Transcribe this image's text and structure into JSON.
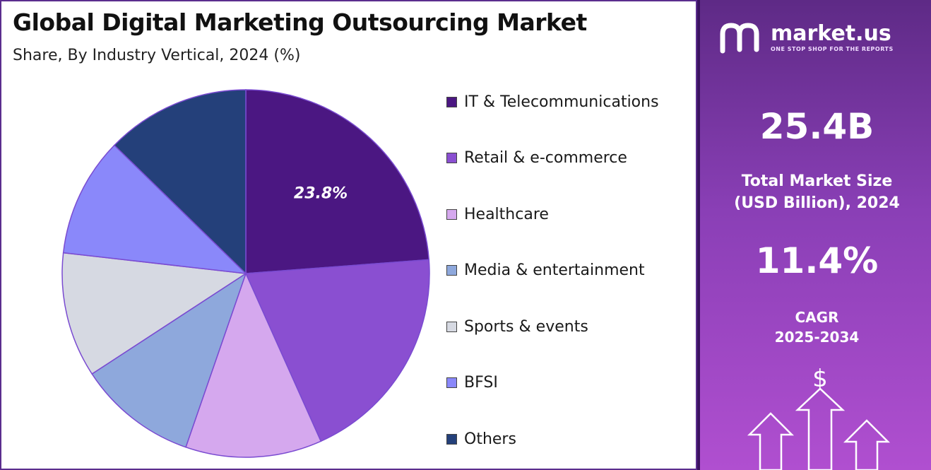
{
  "chart_data": {
    "type": "pie",
    "title": "Global Digital Marketing Outsourcing Market",
    "subtitle": "Share, By Industry Vertical, 2024 (%)",
    "slices": [
      {
        "label": "IT & Telecommunications",
        "value": 23.8,
        "color": "#4b1782",
        "data_label": "23.8%"
      },
      {
        "label": "Retail & e-commerce",
        "value": 19.5,
        "color": "#8a4fd1"
      },
      {
        "label": "Healthcare",
        "value": 12.0,
        "color": "#d5a8ee"
      },
      {
        "label": "Media & entertainment",
        "value": 10.5,
        "color": "#8ea8dc"
      },
      {
        "label": "Sports & events",
        "value": 11.0,
        "color": "#d6d9e2"
      },
      {
        "label": "BFSI",
        "value": 10.5,
        "color": "#8a88fa"
      },
      {
        "label": "Others",
        "value": 12.7,
        "color": "#24407a"
      }
    ],
    "legend_position": "right"
  },
  "brand": {
    "name": "market.us",
    "tagline": "ONE STOP SHOP FOR THE REPORTS"
  },
  "stats": {
    "market_size_value": "25.4B",
    "market_size_label_line1": "Total Market Size",
    "market_size_label_line2": "(USD Billion), 2024",
    "cagr_value": "11.4%",
    "cagr_label_line1": "CAGR",
    "cagr_label_line2": "2025-2034",
    "currency_symbol": "$"
  }
}
